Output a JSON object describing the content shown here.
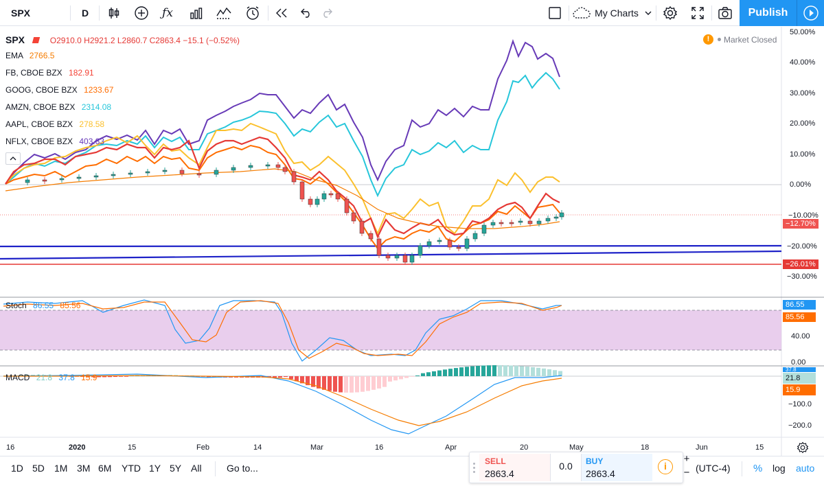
{
  "toolbar": {
    "symbol": "SPX",
    "interval": "D",
    "my_charts": "My Charts",
    "publish": "Publish",
    "icons": [
      "candles-icon",
      "add-indicator-icon",
      "fx-icon",
      "bar-chart-icon",
      "compare-icon",
      "alert-icon",
      "replay-icon",
      "undo-icon",
      "redo-icon",
      "layout-icon",
      "cloud-icon",
      "settings-icon",
      "fullscreen-icon",
      "camera-icon",
      "play-icon"
    ]
  },
  "legend": {
    "symbol": "SPX",
    "ohlc": "O2910.0  H2921.2  L2860.7  C2863.4  −15.1 (−0.52%)",
    "market_status": "Market Closed",
    "ema": {
      "label": "EMA",
      "value": "2766.5",
      "color": "#f57c00"
    },
    "comparisons": [
      {
        "label": "FB, CBOE BZX",
        "value": "182.91",
        "color": "#f44336"
      },
      {
        "label": "GOOG, CBOE BZX",
        "value": "1233.67",
        "color": "#ff6d00"
      },
      {
        "label": "AMZN, CBOE BZX",
        "value": "2314.08",
        "color": "#26c6da"
      },
      {
        "label": "AAPL, CBOE BZX",
        "value": "278.58",
        "color": "#fbc02d"
      },
      {
        "label": "NFLX, CBOE BZX",
        "value": "403.83",
        "color": "#673ab7"
      }
    ]
  },
  "stoch": {
    "label": "Stoch",
    "k": "86.55",
    "d": "85.56",
    "badge_k": "86.55",
    "badge_d": "85.56",
    "axis": [
      "40.00",
      "0.00"
    ]
  },
  "macd": {
    "label": "MACD",
    "hist": "21.8",
    "macd": "37.8",
    "signal": "15.9",
    "badge_a": "37.8",
    "badge_b": "21.8",
    "badge_c": "15.9",
    "axis": [
      "−100.0",
      "−200.0"
    ]
  },
  "price_axis": {
    "ticks": [
      "50.00%",
      "40.00%",
      "30.00%",
      "20.00%",
      "10.00%",
      "0.00%",
      "−10.00%",
      "−20.00%",
      "−30.00%"
    ],
    "badge_red": "−26.01%",
    "badge_current": "−12.70%"
  },
  "time_axis": [
    "16",
    "2020",
    "15",
    "Feb",
    "14",
    "Mar",
    "16",
    "Apr",
    "20",
    "May",
    "18",
    "Jun",
    "15"
  ],
  "bottom": {
    "ranges": [
      "1D",
      "5D",
      "1M",
      "3M",
      "6M",
      "YTD",
      "1Y",
      "5Y",
      "All"
    ],
    "goto": "Go to...",
    "sell_label": "SELL",
    "sell_price": "2863.4",
    "spread": "0.0",
    "buy_label": "BUY",
    "buy_price": "2863.4",
    "timezone": "(UTC-4)",
    "percent": "%",
    "log": "log",
    "auto": "auto"
  },
  "colors": {
    "accent": "#2196f3",
    "up": "#26a69a",
    "down": "#ef5350",
    "stoch_fill": "#e1bee7",
    "hline_blue": "#1e22c8",
    "hline_red": "#e53935"
  }
}
